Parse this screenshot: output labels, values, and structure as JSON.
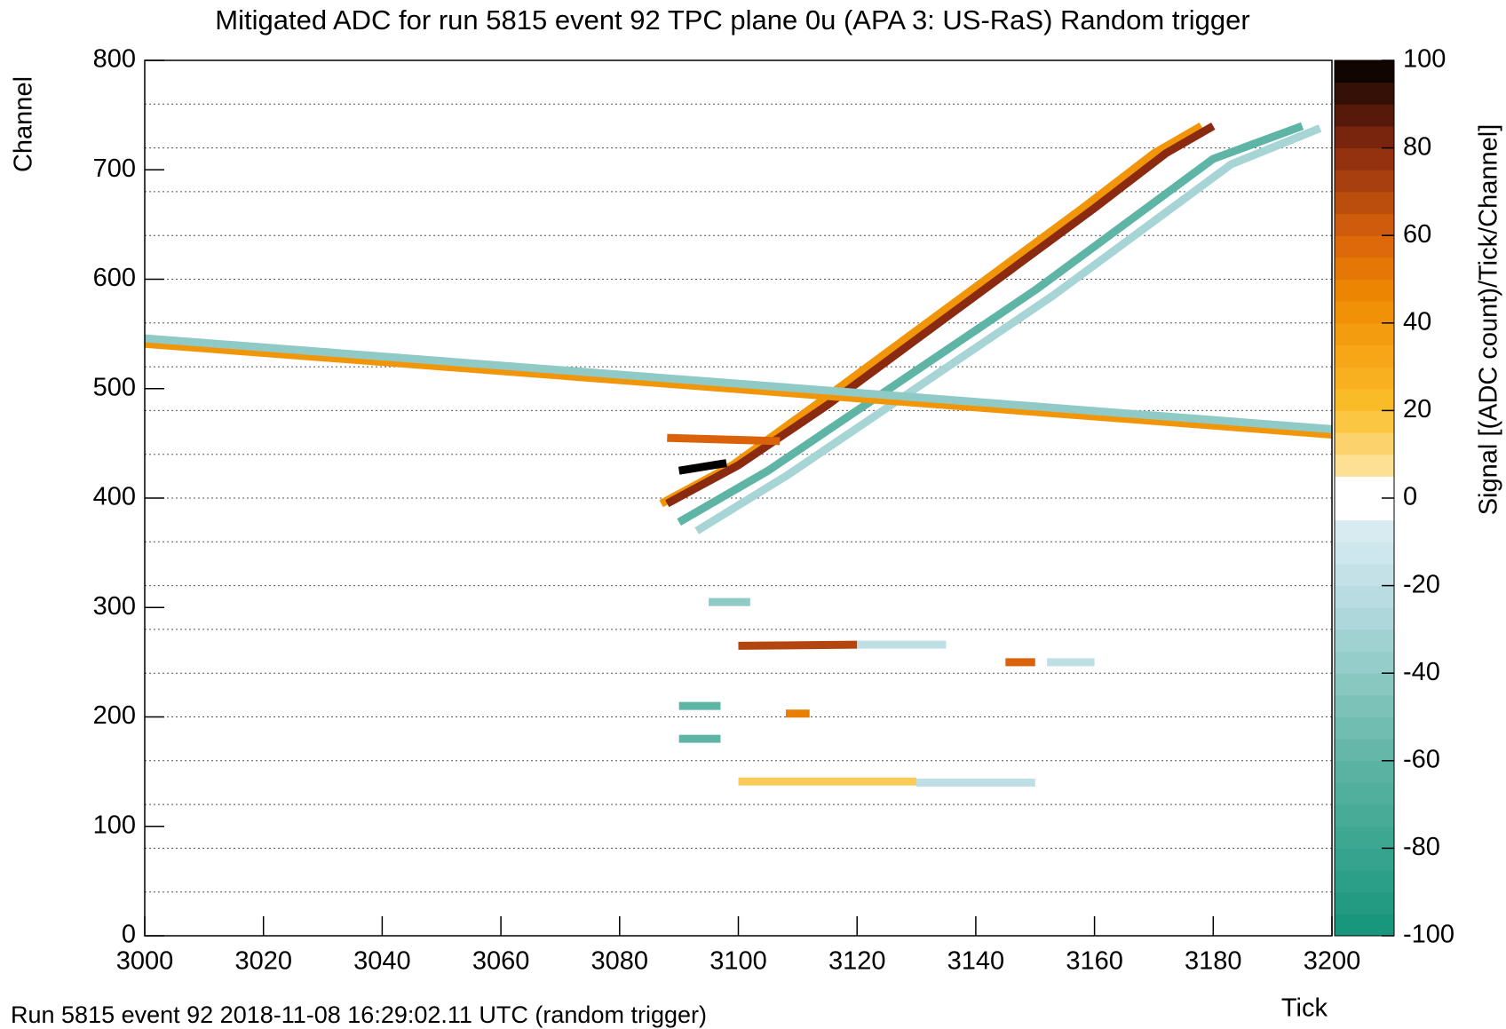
{
  "chart_data": {
    "type": "heatmap",
    "title": "Mitigated ADC for run 5815 event 92 TPC plane 0u (APA 3: US-RaS) Random trigger",
    "x_label": "Tick",
    "y_label": "Channel",
    "z_label": "Signal [(ADC count)/Tick/Channel]",
    "footer": "Run 5815 event 92 2018-11-08 16:29:02.11 UTC (random trigger)",
    "xlim": [
      3000,
      3200
    ],
    "xticks": [
      3000,
      3020,
      3040,
      3060,
      3080,
      3100,
      3120,
      3140,
      3160,
      3180,
      3200
    ],
    "ylim": [
      0,
      800
    ],
    "yticks": [
      0,
      100,
      200,
      300,
      400,
      500,
      600,
      700,
      800
    ],
    "zlim": [
      -100,
      100
    ],
    "zticks": [
      -100,
      -80,
      -60,
      -40,
      -20,
      0,
      20,
      40,
      60,
      80,
      100
    ],
    "zstep": 5,
    "colorscale": [
      [
        -100,
        "#14957a"
      ],
      [
        -60,
        "#5fb5a5"
      ],
      [
        -20,
        "#bfdfe6"
      ],
      [
        -5,
        "#dcedf3"
      ],
      [
        -4.99,
        "#ffffff"
      ],
      [
        4.99,
        "#ffffff"
      ],
      [
        5,
        "#fde6a8"
      ],
      [
        20,
        "#fbc02d"
      ],
      [
        45,
        "#f08c00"
      ],
      [
        60,
        "#d9620b"
      ],
      [
        80,
        "#8a2a10"
      ],
      [
        100,
        "#000000"
      ]
    ],
    "dotted_lines": [
      40,
      80,
      120,
      160,
      200,
      240,
      280,
      320,
      360,
      400,
      440,
      480,
      520,
      560,
      600,
      640,
      680,
      720,
      760
    ],
    "tracks": [
      {
        "x": [
          3093,
          3108,
          3123,
          3138,
          3153,
          3168,
          3183,
          3198
        ],
        "y": [
          370,
          420,
          475,
          530,
          585,
          645,
          705,
          738
        ],
        "value": -30
      },
      {
        "x": [
          3090,
          3105,
          3120,
          3135,
          3150,
          3165,
          3180,
          3195
        ],
        "y": [
          378,
          425,
          480,
          535,
          590,
          650,
          710,
          740
        ],
        "value": -60
      },
      {
        "x": [
          3087,
          3099,
          3113,
          3128,
          3143,
          3158,
          3170,
          3178
        ],
        "y": [
          395,
          430,
          485,
          545,
          605,
          665,
          715,
          740
        ],
        "value": 40
      },
      {
        "x": [
          3088,
          3100,
          3115,
          3130,
          3145,
          3160,
          3172,
          3180
        ],
        "y": [
          395,
          430,
          485,
          545,
          605,
          665,
          715,
          740
        ],
        "value": 80
      },
      {
        "x": [
          3090,
          3098
        ],
        "y": [
          425,
          432
        ],
        "value": 100
      },
      {
        "x": [
          3000,
          3200
        ],
        "y": [
          541,
          458
        ],
        "value": 40
      },
      {
        "x": [
          3000,
          3200
        ],
        "y": [
          546,
          463
        ],
        "value": -40
      },
      {
        "x": [
          3088,
          3107
        ],
        "y": [
          455,
          452
        ],
        "value": 60
      },
      {
        "x": [
          3100,
          3120
        ],
        "y": [
          265,
          266
        ],
        "value": 70
      },
      {
        "x": [
          3120,
          3135
        ],
        "y": [
          266,
          266
        ],
        "value": -20
      },
      {
        "x": [
          3090,
          3097
        ],
        "y": [
          210,
          210
        ],
        "value": -60
      },
      {
        "x": [
          3090,
          3097
        ],
        "y": [
          180,
          180
        ],
        "value": -60
      },
      {
        "x": [
          3095,
          3102
        ],
        "y": [
          305,
          305
        ],
        "value": -40
      },
      {
        "x": [
          3145,
          3150
        ],
        "y": [
          250,
          250
        ],
        "value": 60
      },
      {
        "x": [
          3152,
          3160
        ],
        "y": [
          250,
          250
        ],
        "value": -20
      },
      {
        "x": [
          3108,
          3112
        ],
        "y": [
          203,
          203
        ],
        "value": 50
      },
      {
        "x": [
          3100,
          3130
        ],
        "y": [
          141,
          141
        ],
        "value": 15
      },
      {
        "x": [
          3130,
          3150
        ],
        "y": [
          140,
          140
        ],
        "value": -20
      }
    ]
  }
}
